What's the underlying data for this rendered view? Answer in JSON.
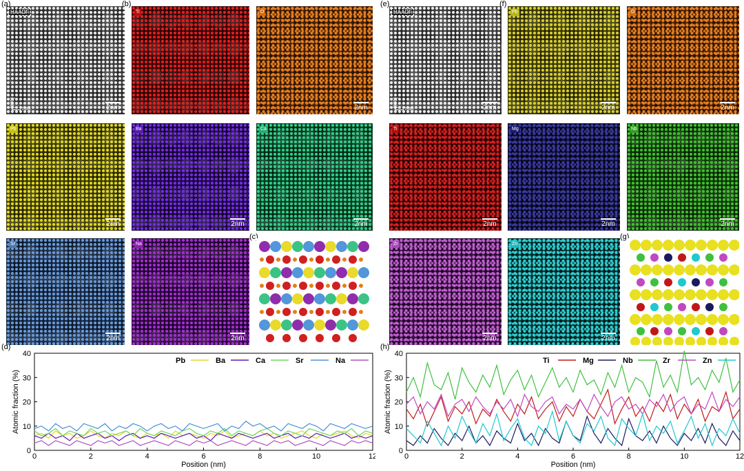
{
  "panel_labels": {
    "a": "(a)",
    "b": "(b)",
    "c": "(c)",
    "d": "(d)",
    "e": "(e)",
    "f": "(f)",
    "g": "(g)",
    "h": "(h)"
  },
  "left": {
    "haadf_tag": "HAADF",
    "zone_top": "[001]",
    "zone_bottom": "[100]",
    "scale": "2nm",
    "maps": [
      {
        "element": "Ti",
        "color": "#c01010"
      },
      {
        "element": "O",
        "color": "#d06a10"
      },
      {
        "element": "Pb",
        "color": "#c8c010"
      },
      {
        "element": "Ba",
        "color": "#5a1ab0"
      },
      {
        "element": "Ca",
        "color": "#20b070"
      },
      {
        "element": "Sr",
        "color": "#4a78b8"
      },
      {
        "element": "Na",
        "color": "#8a22a8"
      }
    ]
  },
  "right": {
    "haadf_tag": "HAADF",
    "zone_top": "[001]",
    "zone_bottom": "[100]",
    "scale": "2nm",
    "maps": [
      {
        "element": "Pb",
        "color": "#b8b818"
      },
      {
        "element": "O",
        "color": "#d06a10"
      },
      {
        "element": "Ti",
        "color": "#b01010"
      },
      {
        "element": "Mg",
        "color": "#1a1a70"
      },
      {
        "element": "Nb",
        "color": "#30a020"
      },
      {
        "element": "Zr",
        "color": "#a848b8"
      },
      {
        "element": "Zn",
        "color": "#20b8b8"
      }
    ]
  },
  "chart_data": [
    {
      "type": "line",
      "panel": "(d)",
      "xlabel": "Position (nm)",
      "ylabel": "Atomic fraction (%)",
      "xlim": [
        0,
        12
      ],
      "ylim": [
        0,
        40
      ],
      "xticks": [
        "0",
        "2",
        "4",
        "6",
        "8",
        "10",
        "12"
      ],
      "yticks": [
        "0",
        "10",
        "20",
        "30",
        "40"
      ],
      "series": [
        {
          "name": "Pb",
          "color": "#e8d820",
          "values": [
            6,
            7,
            5,
            8,
            6,
            7,
            5,
            6,
            8,
            6,
            5,
            7,
            6,
            8,
            6,
            5,
            7,
            6,
            7,
            5,
            8,
            6,
            7,
            6,
            5,
            7,
            6,
            8,
            5,
            6,
            7,
            6,
            8,
            6,
            7,
            5,
            6,
            7,
            8,
            6,
            5,
            7,
            6,
            7,
            8,
            6,
            5,
            7,
            6
          ]
        },
        {
          "name": "Ba",
          "color": "#5a1ab0",
          "values": [
            6,
            5,
            7,
            5,
            6,
            4,
            7,
            5,
            6,
            7,
            5,
            6,
            4,
            6,
            7,
            5,
            6,
            5,
            7,
            6,
            5,
            6,
            7,
            5,
            6,
            4,
            7,
            6,
            5,
            7,
            6,
            5,
            6,
            7,
            5,
            6,
            7,
            5,
            6,
            5,
            7,
            6,
            5,
            6,
            7,
            5,
            6,
            5,
            6
          ]
        },
        {
          "name": "Ca",
          "color": "#6ad860",
          "values": [
            8,
            6,
            7,
            9,
            6,
            8,
            7,
            6,
            9,
            7,
            8,
            6,
            7,
            8,
            6,
            9,
            7,
            6,
            8,
            7,
            6,
            8,
            9,
            7,
            6,
            8,
            7,
            9,
            6,
            8,
            7,
            6,
            8,
            9,
            7,
            6,
            8,
            7,
            6,
            9,
            8,
            7,
            6,
            8,
            7,
            9,
            6,
            8,
            7
          ]
        },
        {
          "name": "Sr",
          "color": "#4a90d8",
          "values": [
            9,
            10,
            8,
            11,
            9,
            10,
            8,
            11,
            10,
            9,
            11,
            8,
            10,
            9,
            11,
            10,
            8,
            10,
            11,
            9,
            10,
            8,
            11,
            10,
            9,
            10,
            11,
            8,
            10,
            9,
            12,
            10,
            11,
            9,
            10,
            8,
            11,
            10,
            9,
            11,
            10,
            8,
            11,
            10,
            9,
            11,
            10,
            9,
            10
          ]
        },
        {
          "name": "Na",
          "color": "#b050c0",
          "values": [
            3,
            4,
            2,
            4,
            3,
            2,
            4,
            3,
            2,
            4,
            3,
            4,
            2,
            3,
            4,
            2,
            3,
            4,
            3,
            2,
            4,
            3,
            2,
            4,
            3,
            4,
            2,
            3,
            4,
            3,
            2,
            4,
            3,
            2,
            4,
            3,
            4,
            2,
            3,
            4,
            3,
            2,
            4,
            3,
            2,
            4,
            3,
            4,
            3
          ]
        }
      ]
    },
    {
      "type": "line",
      "panel": "(h)",
      "xlabel": "Position (nm)",
      "ylabel": "Atomic fraction (%)",
      "xlim": [
        0,
        12
      ],
      "ylim": [
        0,
        40
      ],
      "xticks": [
        "0",
        "2",
        "4",
        "6",
        "8",
        "10",
        "12"
      ],
      "yticks": [
        "0",
        "10",
        "20",
        "30",
        "40"
      ],
      "series": [
        {
          "name": "Ti",
          "color": "#c01818",
          "values": [
            17,
            13,
            19,
            10,
            16,
            22,
            12,
            18,
            15,
            20,
            11,
            17,
            14,
            21,
            16,
            12,
            19,
            15,
            22,
            13,
            17,
            20,
            12,
            18,
            14,
            21,
            16,
            13,
            19,
            25,
            11,
            17,
            22,
            14,
            18,
            12,
            20,
            16,
            23,
            13,
            19,
            15,
            21,
            12,
            18,
            16,
            24,
            13,
            17
          ]
        },
        {
          "name": "Mg",
          "color": "#1a1a60",
          "values": [
            4,
            2,
            6,
            3,
            9,
            5,
            2,
            7,
            4,
            10,
            3,
            6,
            2,
            8,
            5,
            3,
            11,
            4,
            7,
            2,
            9,
            5,
            3,
            12,
            6,
            4,
            14,
            7,
            3,
            9,
            5,
            2,
            13,
            6,
            4,
            8,
            3,
            10,
            5,
            2,
            7,
            4,
            9,
            3,
            11,
            5,
            2,
            8,
            4
          ]
        },
        {
          "name": "Nb",
          "color": "#40c040",
          "values": [
            24,
            30,
            22,
            36,
            27,
            25,
            32,
            21,
            34,
            28,
            24,
            31,
            26,
            35,
            23,
            29,
            33,
            25,
            31,
            22,
            28,
            34,
            26,
            30,
            24,
            33,
            27,
            29,
            23,
            32,
            26,
            35,
            24,
            30,
            28,
            22,
            37,
            26,
            31,
            24,
            41,
            27,
            30,
            25,
            33,
            28,
            38,
            24,
            29
          ]
        },
        {
          "name": "Zr",
          "color": "#c048c0",
          "values": [
            19,
            22,
            15,
            20,
            17,
            23,
            14,
            19,
            21,
            16,
            22,
            18,
            15,
            20,
            17,
            21,
            14,
            23,
            18,
            16,
            20,
            22,
            15,
            19,
            17,
            21,
            16,
            23,
            18,
            14,
            20,
            22,
            17,
            19,
            15,
            21,
            18,
            23,
            16,
            20,
            22,
            15,
            19,
            17,
            24,
            16,
            21,
            18,
            22
          ]
        },
        {
          "name": "Zn",
          "color": "#20c8d0",
          "values": [
            9,
            6,
            3,
            12,
            7,
            2,
            10,
            5,
            14,
            8,
            3,
            11,
            6,
            15,
            4,
            9,
            13,
            5,
            2,
            10,
            7,
            16,
            4,
            12,
            6,
            3,
            11,
            8,
            14,
            5,
            2,
            13,
            9,
            6,
            15,
            4,
            10,
            7,
            12,
            3,
            8,
            14,
            5,
            11,
            2,
            9,
            6,
            13,
            7
          ]
        }
      ]
    }
  ]
}
